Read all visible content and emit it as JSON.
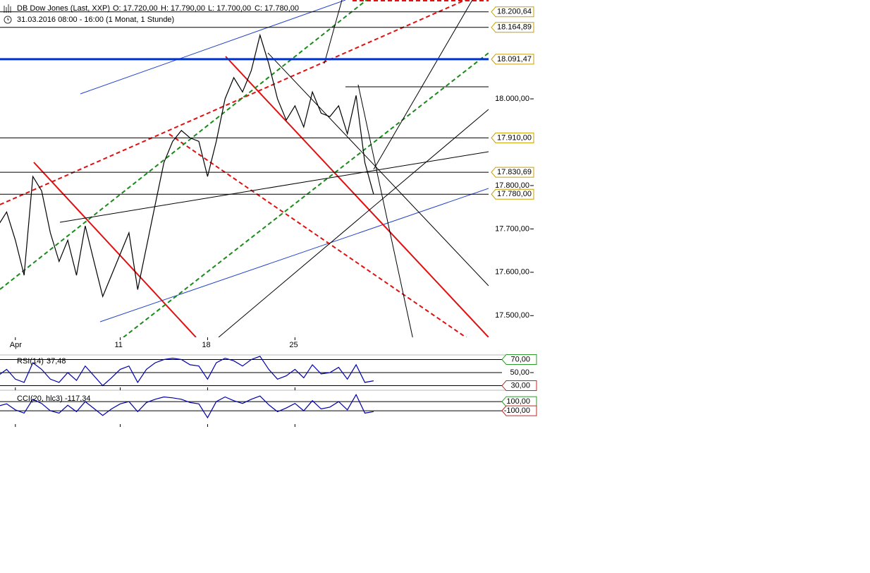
{
  "chart_data": [
    {
      "type": "line",
      "title": "DB Dow Jones (Last, XXP)",
      "ohlc": [
        "O: 17.720,00",
        "H: 17.790,00",
        "L: 17.700,00",
        "C: 17.780,00"
      ],
      "subtitle": "31.03.2016 08:00 - 16:00 (1 Monat, 1 Stunde)",
      "x": [
        0,
        0.5,
        1,
        1.5,
        2,
        2.5,
        3,
        3.5,
        4,
        4.5,
        5,
        5.5,
        6,
        6.5,
        7,
        7.5,
        8,
        8.5,
        9,
        9.5,
        10,
        10.5,
        11,
        11.5,
        12,
        12.5,
        13,
        13.5,
        14,
        14.5,
        15,
        15.5,
        16,
        16.5,
        17,
        17.5,
        18,
        18.5,
        19,
        19.5,
        20,
        20.5,
        21,
        21.5
      ],
      "series": [
        {
          "name": "DB Dow Jones",
          "color": "#000000",
          "values": [
            17707,
            17739,
            17674,
            17593,
            17821,
            17788,
            17691,
            17625,
            17674,
            17593,
            17707,
            17625,
            17544,
            17593,
            17642,
            17691,
            17560,
            17658,
            17756,
            17853,
            17902,
            17927,
            17910,
            17902,
            17821,
            17902,
            18000,
            18049,
            18016,
            18065,
            18147,
            18081,
            18000,
            17951,
            17984,
            17935,
            18016,
            17967,
            17959,
            17984,
            17919,
            18008,
            17853,
            17780
          ]
        }
      ],
      "xlim": [
        0,
        28
      ],
      "xticks": [
        {
          "value": 1,
          "label": "Apr"
        },
        {
          "value": 7,
          "label": "11"
        },
        {
          "value": 12,
          "label": "18"
        },
        {
          "value": 17,
          "label": "25"
        }
      ],
      "ylim": [
        17450,
        18228
      ],
      "yticks": [
        {
          "value": 17500,
          "label": "17.500,00"
        },
        {
          "value": 17600,
          "label": "17.600,00"
        },
        {
          "value": 17700,
          "label": "17.700,00"
        },
        {
          "value": 17800,
          "label": "17.800,00"
        },
        {
          "value": 18000,
          "label": "18.000,00"
        }
      ],
      "levels": [
        {
          "value": 18200.64,
          "label": "18.200,64",
          "color": "#000000"
        },
        {
          "value": 18164.89,
          "label": "18.164,89",
          "color": "#000000"
        },
        {
          "value": 18091.47,
          "label": "18.091,47",
          "color": "#0033cc"
        },
        {
          "value": 17910,
          "label": "17.910,00",
          "color": "#000000"
        },
        {
          "value": 17830.69,
          "label": "17.830,69",
          "color": "#000000"
        },
        {
          "value": 17780,
          "label": "17.780,00",
          "color": "#000000"
        }
      ]
    },
    {
      "type": "line",
      "title": "RSI(14)",
      "current": {
        "value": 37.48,
        "label": "37,48"
      },
      "x": [
        0,
        0.5,
        1,
        1.5,
        2,
        2.5,
        3,
        3.5,
        4,
        4.5,
        5,
        5.5,
        6,
        6.5,
        7,
        7.5,
        8,
        8.5,
        9,
        9.5,
        10,
        10.5,
        11,
        11.5,
        12,
        12.5,
        13,
        13.5,
        14,
        14.5,
        15,
        15.5,
        16,
        16.5,
        17,
        17.5,
        18,
        18.5,
        19,
        19.5,
        20,
        20.5,
        21,
        21.5
      ],
      "series": [
        {
          "name": "RSI(14)",
          "color": "#0000aa",
          "values": [
            45,
            55,
            40,
            35,
            65,
            55,
            40,
            35,
            50,
            38,
            60,
            45,
            30,
            42,
            55,
            60,
            35,
            55,
            65,
            70,
            72,
            70,
            62,
            60,
            40,
            65,
            72,
            68,
            60,
            70,
            75,
            55,
            40,
            45,
            55,
            42,
            62,
            48,
            50,
            58,
            40,
            62,
            35,
            37.48
          ]
        }
      ],
      "xlim": [
        0,
        28
      ],
      "ylim": [
        23,
        77
      ],
      "yticks": [
        {
          "value": 70,
          "label": "70,00",
          "color": "#2a9a2a"
        },
        {
          "value": 50,
          "label": "50,00"
        },
        {
          "value": 30,
          "label": "30,00",
          "color": "#cc2222"
        }
      ]
    },
    {
      "type": "line",
      "title": "CCI(20, hlc3)",
      "current": {
        "value": -117.34,
        "label": "-117,34"
      },
      "x": [
        0,
        0.5,
        1,
        1.5,
        2,
        2.5,
        3,
        3.5,
        4,
        4.5,
        5,
        5.5,
        6,
        6.5,
        7,
        7.5,
        8,
        8.5,
        9,
        9.5,
        10,
        10.5,
        11,
        11.5,
        12,
        12.5,
        13,
        13.5,
        14,
        14.5,
        15,
        15.5,
        16,
        16.5,
        17,
        17.5,
        18,
        18.5,
        19,
        19.5,
        20,
        20.5,
        21,
        21.5
      ],
      "series": [
        {
          "name": "CCI(20, hlc3)",
          "color": "#0000aa",
          "values": [
            0,
            50,
            -80,
            -150,
            150,
            60,
            -100,
            -150,
            20,
            -120,
            100,
            -50,
            -200,
            -60,
            50,
            100,
            -120,
            80,
            150,
            200,
            180,
            150,
            80,
            50,
            -250,
            100,
            200,
            120,
            60,
            150,
            220,
            30,
            -120,
            -40,
            60,
            -100,
            120,
            -60,
            -20,
            100,
            -80,
            250,
            -150,
            -117.34
          ]
        }
      ],
      "xlim": [
        0,
        28
      ],
      "ylim": [
        -450,
        300
      ],
      "yticks": [
        {
          "value": 100,
          "label": "100,00",
          "color": "#2a9a2a"
        },
        {
          "value": -100,
          "label": "-100,00",
          "color": "#cc2222"
        }
      ]
    }
  ]
}
